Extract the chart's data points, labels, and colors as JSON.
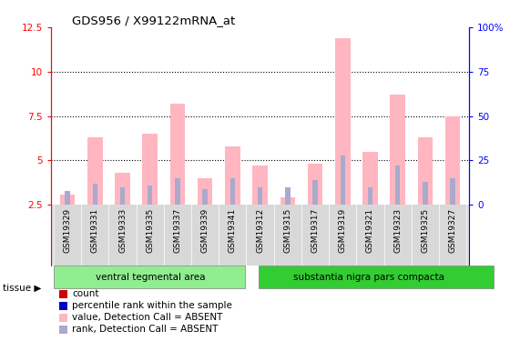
{
  "title": "GDS956 / X99122mRNA_at",
  "categories": [
    "GSM19329",
    "GSM19331",
    "GSM19333",
    "GSM19335",
    "GSM19337",
    "GSM19339",
    "GSM19341",
    "GSM19312",
    "GSM19315",
    "GSM19317",
    "GSM19319",
    "GSM19321",
    "GSM19323",
    "GSM19325",
    "GSM19327"
  ],
  "group1_count": 7,
  "group2_count": 8,
  "group1_label": "ventral tegmental area",
  "group2_label": "substantia nigra pars compacta",
  "ylim_left": [
    2.5,
    12.5
  ],
  "ylim_right": [
    0,
    100
  ],
  "yticks_left": [
    2.5,
    5.0,
    7.5,
    10.0,
    12.5
  ],
  "yticks_right": [
    0,
    25,
    50,
    75,
    100
  ],
  "ytick_labels_left": [
    "2.5",
    "5",
    "7.5",
    "10",
    "12.5"
  ],
  "ytick_labels_right": [
    "0",
    "25",
    "50",
    "75",
    "100%"
  ],
  "hlines": [
    5.0,
    7.5,
    10.0
  ],
  "absent_values": [
    3.1,
    6.3,
    4.3,
    6.5,
    8.2,
    4.0,
    5.8,
    4.7,
    2.9,
    4.8,
    11.9,
    5.5,
    8.7,
    6.3,
    7.5
  ],
  "absent_ranks": [
    3.3,
    3.7,
    3.5,
    3.6,
    4.0,
    3.4,
    4.0,
    3.5,
    3.5,
    3.9,
    5.3,
    3.5,
    4.7,
    3.8,
    4.0
  ],
  "bar_color_absent": "#FFB6C1",
  "bar_color_rank_absent": "#AAAACC",
  "bg_color_plot": "#FFFFFF",
  "bg_color_xlabels": "#D8D8D8",
  "bg_color_group1": "#90EE90",
  "bg_color_group2": "#32CD32",
  "tissue_label": "tissue",
  "legend_items": [
    {
      "color": "#CC0000",
      "label": "count"
    },
    {
      "color": "#0000CC",
      "label": "percentile rank within the sample"
    },
    {
      "color": "#FFB6C1",
      "label": "value, Detection Call = ABSENT"
    },
    {
      "color": "#AAAACC",
      "label": "rank, Detection Call = ABSENT"
    }
  ]
}
